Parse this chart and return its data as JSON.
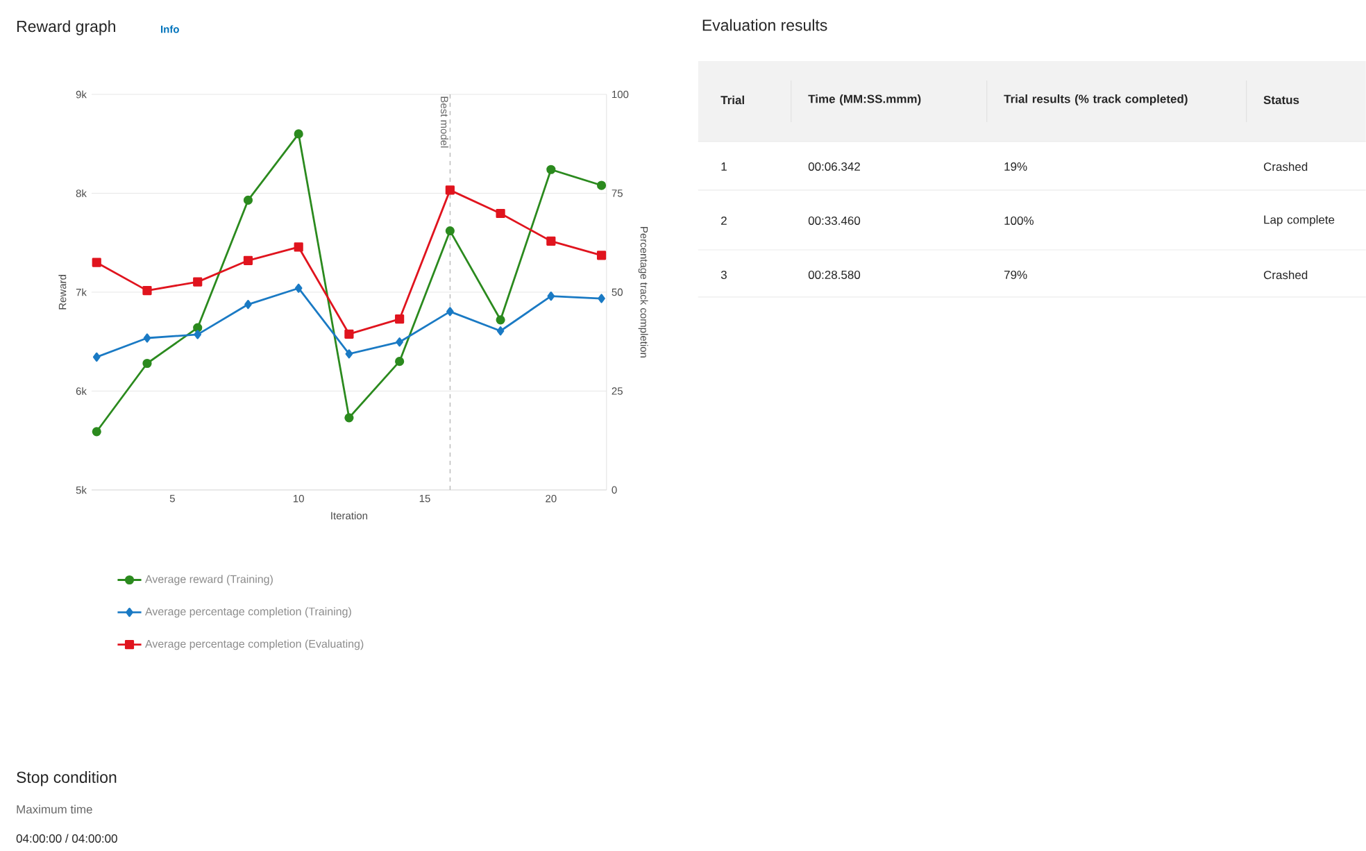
{
  "chart_data": [
    {
      "type": "line",
      "title": "Reward graph",
      "subtitle": "Info",
      "xlabel": "Iteration",
      "ylabel": "Reward",
      "y2label": "Percentage track completion",
      "x": [
        2,
        4,
        6,
        8,
        10,
        12,
        14,
        16,
        18,
        20,
        22
      ],
      "series": [
        {
          "name": "Average reward (Training)",
          "color": "#2b8a1e",
          "marker": "circle",
          "values": [
            5590,
            6280,
            6640,
            7930,
            8600,
            5730,
            6300,
            7620,
            6720,
            8240,
            8080
          ]
        },
        {
          "name": "Average percentage completion (Training)",
          "color": "#1a7ac4",
          "marker": "diamond",
          "axis": "y2",
          "values": [
            33.6,
            38.4,
            39.3,
            46.9,
            51.0,
            34.4,
            37.4,
            45.1,
            40.2,
            49.0,
            48.4
          ]
        },
        {
          "name": "Average percentage completion (Evaluating)",
          "color": "#e0141e",
          "marker": "square",
          "axis": "y2",
          "values": [
            57.5,
            50.4,
            52.6,
            58.0,
            61.4,
            39.4,
            43.2,
            75.8,
            69.9,
            62.9,
            59.3
          ]
        }
      ],
      "xlim": [
        1.8,
        22.2
      ],
      "xticks": [
        5,
        10,
        15,
        20
      ],
      "ylim": [
        5000,
        9000
      ],
      "yticks": [
        {
          "value": 5000,
          "label": "5k"
        },
        {
          "value": 6000,
          "label": "6k"
        },
        {
          "value": 7000,
          "label": "7k"
        },
        {
          "value": 8000,
          "label": "8k"
        },
        {
          "value": 9000,
          "label": "9k"
        }
      ],
      "y2lim": [
        0,
        100
      ],
      "y2ticks": [
        0,
        25,
        50,
        75,
        100
      ],
      "ref_lines": [
        {
          "axis": "x",
          "value": 16,
          "label": "Best model",
          "line_style": "dashed",
          "color": "#888888"
        }
      ],
      "grid": "y",
      "legend": "bottom"
    },
    {
      "type": "other",
      "title": "Evaluation results",
      "annotations": [
        "Trial",
        "Time (MM:SS.mmm)",
        "Trial results (% track completed)",
        "Status",
        "1",
        "00:06.342",
        "19%",
        "Crashed",
        "2",
        "00:33.460",
        "100%",
        "Lap complete",
        "3",
        "00:28.580",
        "79%",
        "Crashed"
      ]
    },
    {
      "type": "other",
      "title": "Stop condition",
      "annotations": [
        "Maximum time",
        "04:00:00 / 04:00:00"
      ]
    }
  ]
}
